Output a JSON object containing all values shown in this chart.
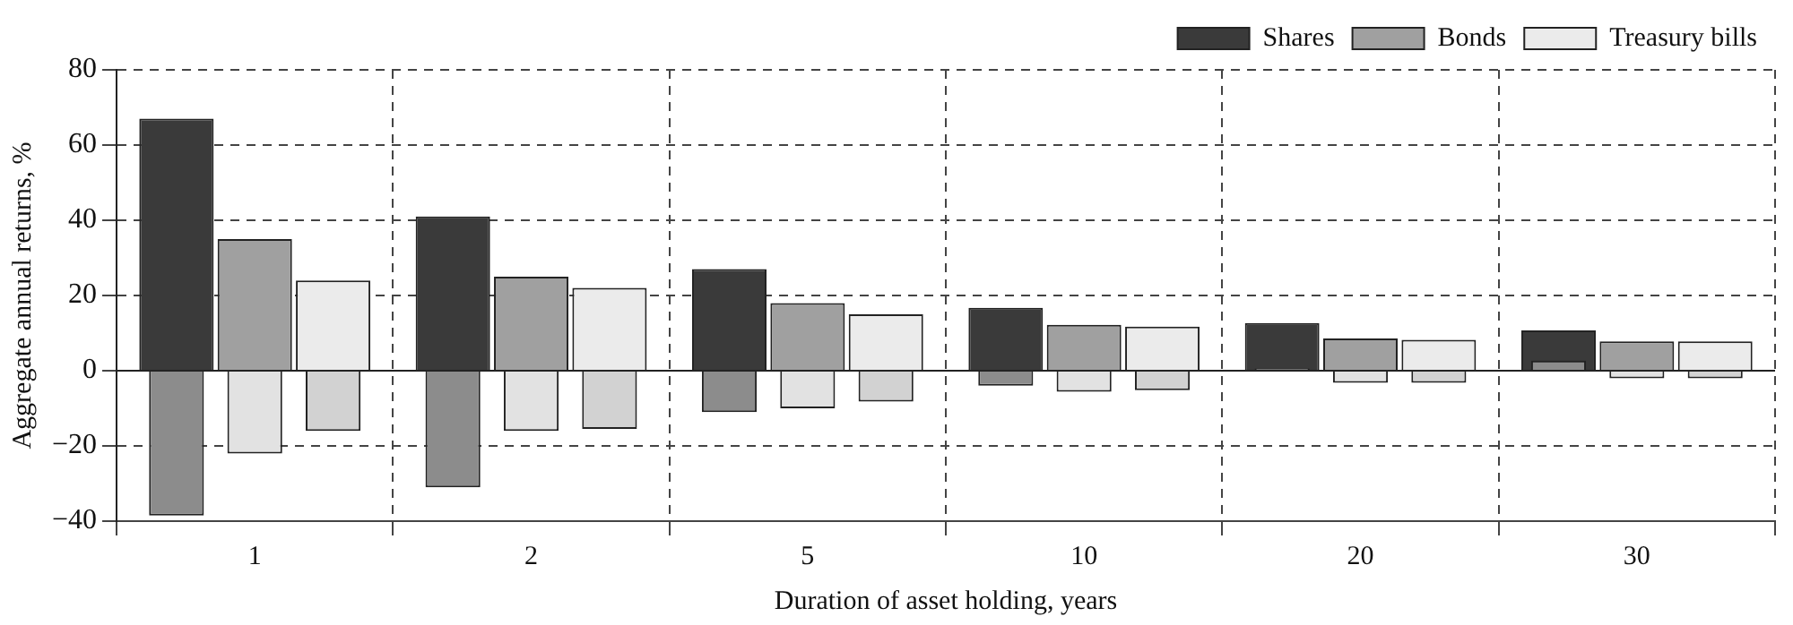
{
  "chart_data": {
    "type": "bar",
    "xlabel": "Duration of asset holding, years",
    "ylabel": "Aggregate annual returns, %",
    "categories": [
      "1",
      "2",
      "5",
      "10",
      "20",
      "30"
    ],
    "series": [
      {
        "name": "Shares",
        "color": "#3a3a3a",
        "values": [
          67,
          41,
          27,
          16.7,
          12.7,
          10.7
        ]
      },
      {
        "color": "#8c8c8c",
        "values": [
          -38.5,
          -31,
          -11,
          -4,
          0.6,
          2.7
        ]
      },
      {
        "name": "Bonds",
        "color": "#a0a0a0",
        "values": [
          35,
          25,
          18,
          12.2,
          8.6,
          7.8
        ]
      },
      {
        "color": "#e2e2e2",
        "values": [
          -22,
          -16,
          -10,
          -5.6,
          -3.2,
          -2
        ]
      },
      {
        "name": "Treasury bills",
        "color": "#ebebeb",
        "values": [
          24,
          22,
          15,
          11.7,
          8.2,
          7.8
        ]
      },
      {
        "color": "#d2d2d2",
        "values": [
          -16,
          -15.5,
          -8.2,
          -5.2,
          -3.2,
          -2
        ]
      }
    ],
    "ylim": [
      -40,
      80
    ],
    "yticks": [
      -40,
      -20,
      0,
      20,
      40,
      60,
      80
    ],
    "grid": true,
    "legend": "top right"
  }
}
